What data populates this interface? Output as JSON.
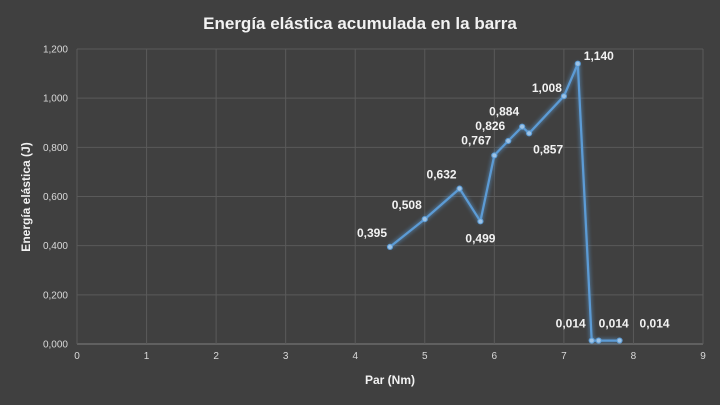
{
  "chart_data": {
    "type": "scatter",
    "title": "Energía elástica acumulada en la barra",
    "xlabel": "Par (Nm)",
    "ylabel": "Energía elástica (J)",
    "xlim": [
      0,
      9
    ],
    "ylim": [
      0,
      1.2
    ],
    "x_ticks": [
      "0",
      "1",
      "2",
      "3",
      "4",
      "5",
      "6",
      "7",
      "8",
      "9"
    ],
    "y_ticks": [
      "0,000",
      "0,200",
      "0,400",
      "0,600",
      "0,800",
      "1,000",
      "1,200"
    ],
    "grid": true,
    "line_color": "#5b9bd5",
    "series": [
      {
        "x": [
          4.5,
          5.0,
          5.5,
          5.8,
          6.0,
          6.2,
          6.4,
          6.5,
          7.0,
          7.2,
          7.4,
          7.5,
          7.8
        ],
        "y": [
          0.395,
          0.508,
          0.632,
          0.499,
          0.767,
          0.826,
          0.884,
          0.857,
          1.008,
          1.14,
          0.014,
          0.014,
          0.014
        ],
        "labels": [
          "0,395",
          "0,508",
          "0,632",
          "0,499",
          "0,767",
          "0,826",
          "0,884",
          "0,857",
          "1,008",
          "1,140",
          "0,014",
          "0,014",
          "0,014"
        ]
      }
    ]
  }
}
